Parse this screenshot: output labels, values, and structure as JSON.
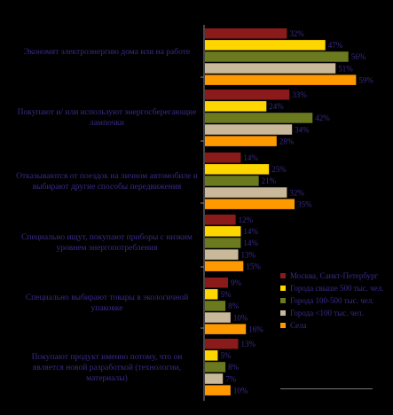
{
  "chart_data": {
    "type": "bar",
    "orientation": "horizontal",
    "categories": [
      "Экономят электроэнергию дома или на работе",
      "Покупают и/ или используют энергосберегающие лампочки",
      "Отказываются от поездок на личном автомобиле и выбирают другие способы передвижения",
      "Специально ищут, покупают приборы с низким уровнем энергопотребления",
      "Специально выбирают товары в экологичной упаковке",
      "Покупают продукт именно потому, что он является новой разработкой (технологии, материалы)"
    ],
    "series": [
      {
        "name": "Москва, Санкт-Петербург",
        "color": "#8B1A1A",
        "values": [
          32,
          33,
          14,
          12,
          9,
          13
        ]
      },
      {
        "name": "Города свыше 500 тыс. чел.",
        "color": "#FFD700",
        "values": [
          47,
          24,
          25,
          14,
          5,
          5
        ]
      },
      {
        "name": "Города 100-500 тыс. чел.",
        "color": "#6B7A1F",
        "values": [
          56,
          42,
          21,
          14,
          8,
          8
        ]
      },
      {
        "name": "Города <100 тыс. чел.",
        "color": "#C9B99A",
        "values": [
          51,
          34,
          32,
          13,
          10,
          7
        ]
      },
      {
        "name": "Села",
        "color": "#FF9900",
        "values": [
          59,
          28,
          35,
          15,
          16,
          10
        ]
      }
    ],
    "value_suffix": "%",
    "xlim": [
      0,
      60
    ],
    "grid": false,
    "legend_position": "bottom-right"
  }
}
